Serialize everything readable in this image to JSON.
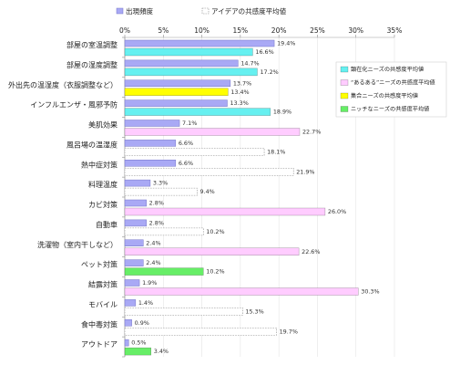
{
  "need_legend": [
    {
      "label": "顕在化ニーズの共感度平均値",
      "color": "#66f0f0"
    },
    {
      "label": "“あるある”ニーズの共感度平均値",
      "color": "#ffccff"
    },
    {
      "label": "集合ニーズの共感度平均値",
      "color": "#ffff00"
    },
    {
      "label": "ニッチなニーズの共感度平均値",
      "color": "#66ee66"
    }
  ],
  "chart_data": {
    "type": "bar",
    "orientation": "horizontal",
    "legend_position": "top",
    "need_legend_position": "right",
    "grid": true,
    "xlim": [
      0,
      35
    ],
    "xticks": [
      0,
      5,
      10,
      15,
      20,
      25,
      30,
      35
    ],
    "xtick_labels": [
      "0%",
      "5%",
      "10%",
      "15%",
      "20%",
      "25%",
      "30%",
      "35%"
    ],
    "categories": [
      "部屋の室温調整",
      "部屋の湿度調整",
      "外出先の温湿度（衣服調整など）",
      "インフルエンザ・風邪予防",
      "美肌効果",
      "風呂場の温湿度",
      "熱中症対策",
      "料理温度",
      "カビ対策",
      "自動車",
      "洗濯物（室内干しなど）",
      "ペット対策",
      "結露対策",
      "モバイル",
      "食中毒対策",
      "アウトドア"
    ],
    "series": [
      {
        "name": "出現頻度",
        "color": "#a9a9f5",
        "values": [
          19.4,
          14.7,
          13.7,
          13.3,
          7.1,
          6.6,
          6.6,
          3.3,
          2.8,
          2.8,
          2.4,
          2.4,
          1.9,
          1.4,
          0.9,
          0.5
        ],
        "labels": [
          "19.4%",
          "14.7%",
          "13.7%",
          "13.3%",
          "7.1%",
          "6.6%",
          "6.6%",
          "3.3%",
          "2.8%",
          "2.8%",
          "2.4%",
          "2.4%",
          "1.9%",
          "1.4%",
          "0.9%",
          "0.5%"
        ]
      },
      {
        "name": "アイデアの共感度平均値",
        "values": [
          16.6,
          17.2,
          13.4,
          18.9,
          22.7,
          18.1,
          21.9,
          9.4,
          26.0,
          10.2,
          22.6,
          10.2,
          30.3,
          15.3,
          19.7,
          3.4
        ],
        "labels": [
          "16.6%",
          "17.2%",
          "13.4%",
          "18.9%",
          "22.7%",
          "18.1%",
          "21.9%",
          "9.4%",
          "26.0%",
          "10.2%",
          "22.6%",
          "10.2%",
          "30.3%",
          "15.3%",
          "19.7%",
          "3.4%"
        ],
        "need_group": [
          0,
          0,
          2,
          0,
          1,
          null,
          null,
          null,
          1,
          null,
          1,
          3,
          1,
          null,
          null,
          3
        ]
      }
    ]
  }
}
